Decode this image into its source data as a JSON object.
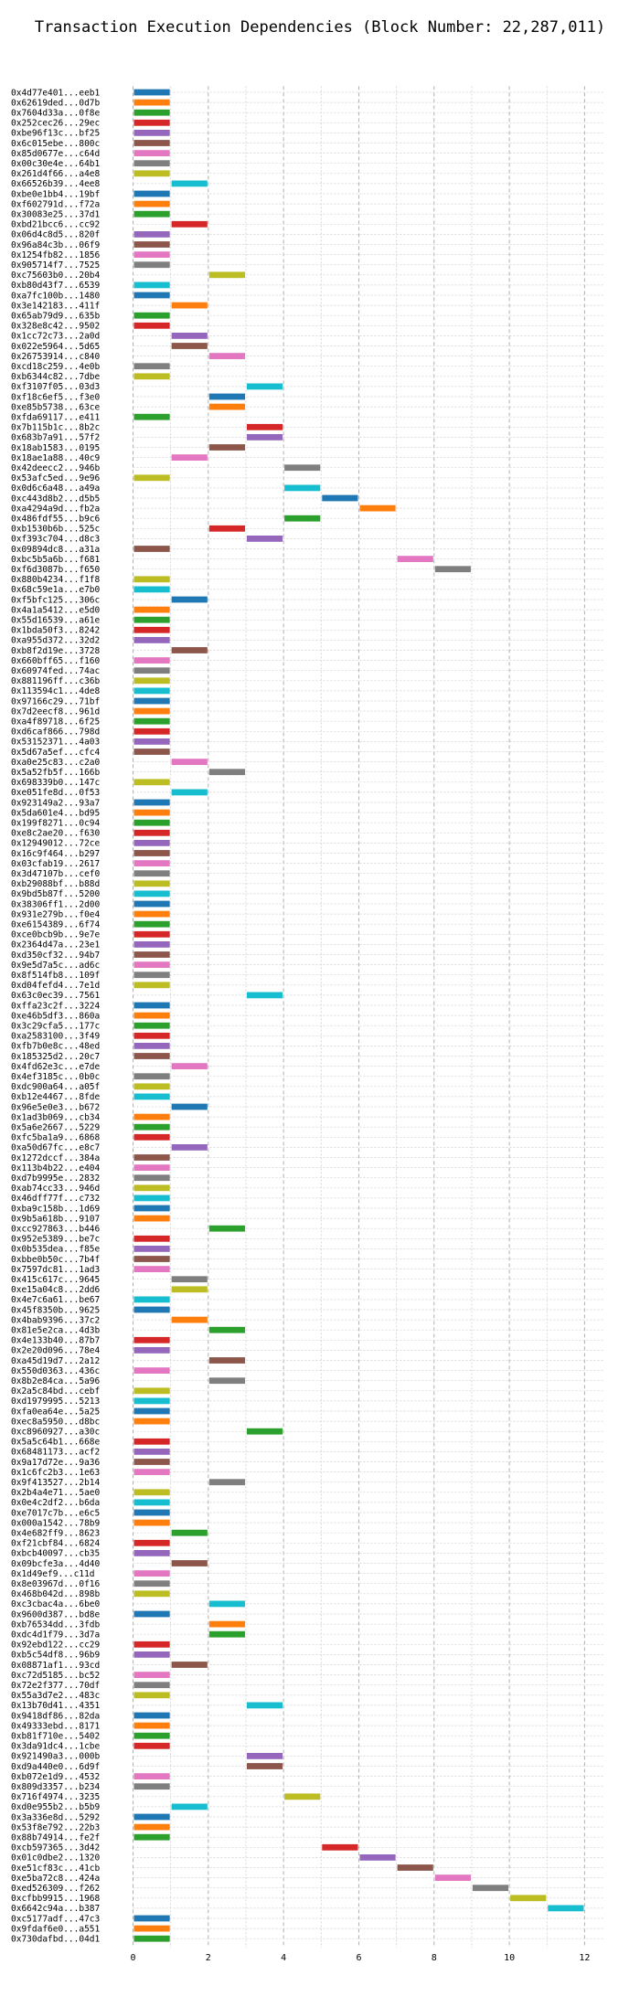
{
  "chart_data": {
    "type": "bar",
    "orientation": "horizontal",
    "title": "Transaction Execution Dependencies (Block Number: 22,287,011)",
    "xlabel": "",
    "ylabel": "",
    "xlim": [
      0,
      12.5
    ],
    "xticks": [
      0,
      2,
      4,
      6,
      8,
      10,
      12
    ],
    "grid": true,
    "legend": "none",
    "colors": [
      "#1f77b4",
      "#ff7f0e",
      "#2ca02c",
      "#d62728",
      "#9467bd",
      "#8c564b",
      "#e377c2",
      "#7f7f7f",
      "#bcbd22",
      "#17becf"
    ],
    "transactions": [
      {
        "label": "0x4d77e401...eeb1",
        "start": 0,
        "end": 1
      },
      {
        "label": "0x62619ded...0d7b",
        "start": 0,
        "end": 1
      },
      {
        "label": "0x7604d33a...0f8e",
        "start": 0,
        "end": 1
      },
      {
        "label": "0x252cec26...29ec",
        "start": 0,
        "end": 1
      },
      {
        "label": "0xbe96f13c...bf25",
        "start": 0,
        "end": 1
      },
      {
        "label": "0x6c015ebe...800c",
        "start": 0,
        "end": 1
      },
      {
        "label": "0x85d0677e...c64d",
        "start": 0,
        "end": 1
      },
      {
        "label": "0x00c30e4e...64b1",
        "start": 0,
        "end": 1
      },
      {
        "label": "0x261d4f66...a4e8",
        "start": 0,
        "end": 1
      },
      {
        "label": "0x66526b39...4ee8",
        "start": 1,
        "end": 2
      },
      {
        "label": "0xbe0e1bb4...19bf",
        "start": 0,
        "end": 1
      },
      {
        "label": "0xf602791d...f72a",
        "start": 0,
        "end": 1
      },
      {
        "label": "0x30083e25...37d1",
        "start": 0,
        "end": 1
      },
      {
        "label": "0xbd21bcc6...cc92",
        "start": 1,
        "end": 2
      },
      {
        "label": "0x06d4c8d5...820f",
        "start": 0,
        "end": 1
      },
      {
        "label": "0x96a84c3b...06f9",
        "start": 0,
        "end": 1
      },
      {
        "label": "0x1254fb82...1856",
        "start": 0,
        "end": 1
      },
      {
        "label": "0x905714f7...7525",
        "start": 0,
        "end": 1
      },
      {
        "label": "0xc75603b0...20b4",
        "start": 2,
        "end": 3
      },
      {
        "label": "0xb80d43f7...6539",
        "start": 0,
        "end": 1
      },
      {
        "label": "0xa7fc100b...1480",
        "start": 0,
        "end": 1
      },
      {
        "label": "0x3e142183...411f",
        "start": 1,
        "end": 2
      },
      {
        "label": "0x65ab79d9...635b",
        "start": 0,
        "end": 1
      },
      {
        "label": "0x328e8c42...9502",
        "start": 0,
        "end": 1
      },
      {
        "label": "0x1cc72c73...2a0d",
        "start": 1,
        "end": 2
      },
      {
        "label": "0x022e5964...5d65",
        "start": 1,
        "end": 2
      },
      {
        "label": "0x26753914...c840",
        "start": 2,
        "end": 3
      },
      {
        "label": "0xcd18c259...4e0b",
        "start": 0,
        "end": 1
      },
      {
        "label": "0xb6344c82...7dbe",
        "start": 0,
        "end": 1
      },
      {
        "label": "0xf3107f05...03d3",
        "start": 3,
        "end": 4
      },
      {
        "label": "0xf18c6ef5...f3e0",
        "start": 2,
        "end": 3
      },
      {
        "label": "0xe85b5738...63ce",
        "start": 2,
        "end": 3
      },
      {
        "label": "0xfda69117...e411",
        "start": 0,
        "end": 1
      },
      {
        "label": "0x7b115b1c...8b2c",
        "start": 3,
        "end": 4
      },
      {
        "label": "0x683b7a91...57f2",
        "start": 3,
        "end": 4
      },
      {
        "label": "0x18ab1583...0195",
        "start": 2,
        "end": 3
      },
      {
        "label": "0x18ae1a88...40c9",
        "start": 1,
        "end": 2
      },
      {
        "label": "0x42deecc2...946b",
        "start": 4,
        "end": 5
      },
      {
        "label": "0x53afc5ed...9e96",
        "start": 0,
        "end": 1
      },
      {
        "label": "0x0d6c6a48...a49a",
        "start": 4,
        "end": 5
      },
      {
        "label": "0xc443d8b2...d5b5",
        "start": 5,
        "end": 6
      },
      {
        "label": "0xa4294a9d...fb2a",
        "start": 6,
        "end": 7
      },
      {
        "label": "0x486fdf55...b9c6",
        "start": 4,
        "end": 5
      },
      {
        "label": "0xb1530b6b...525c",
        "start": 2,
        "end": 3
      },
      {
        "label": "0xf393c704...d8c3",
        "start": 3,
        "end": 4
      },
      {
        "label": "0x09894dc8...a31a",
        "start": 0,
        "end": 1
      },
      {
        "label": "0xbc5b5a6b...f681",
        "start": 7,
        "end": 8
      },
      {
        "label": "0xf6d3087b...f650",
        "start": 8,
        "end": 9
      },
      {
        "label": "0x880b4234...f1f8",
        "start": 0,
        "end": 1
      },
      {
        "label": "0x68c59e1a...e7b0",
        "start": 0,
        "end": 1
      },
      {
        "label": "0xf5bfc125...306c",
        "start": 1,
        "end": 2
      },
      {
        "label": "0x4a1a5412...e5d0",
        "start": 0,
        "end": 1
      },
      {
        "label": "0x55d16539...a61e",
        "start": 0,
        "end": 1
      },
      {
        "label": "0x1bda50f3...8242",
        "start": 0,
        "end": 1
      },
      {
        "label": "0xa955d372...32d2",
        "start": 0,
        "end": 1
      },
      {
        "label": "0xb8f2d19e...3728",
        "start": 1,
        "end": 2
      },
      {
        "label": "0x660bff65...f160",
        "start": 0,
        "end": 1
      },
      {
        "label": "0x60974fed...74ac",
        "start": 0,
        "end": 1
      },
      {
        "label": "0x881196ff...c36b",
        "start": 0,
        "end": 1
      },
      {
        "label": "0x113594c1...4de8",
        "start": 0,
        "end": 1
      },
      {
        "label": "0x97166c29...71bf",
        "start": 0,
        "end": 1
      },
      {
        "label": "0x7d2eecf8...961d",
        "start": 0,
        "end": 1
      },
      {
        "label": "0xa4f89718...6f25",
        "start": 0,
        "end": 1
      },
      {
        "label": "0xd6caf866...798d",
        "start": 0,
        "end": 1
      },
      {
        "label": "0x53152371...4a03",
        "start": 0,
        "end": 1
      },
      {
        "label": "0x5d67a5ef...cfc4",
        "start": 0,
        "end": 1
      },
      {
        "label": "0xa0e25c83...c2a0",
        "start": 1,
        "end": 2
      },
      {
        "label": "0x5a52fb5f...166b",
        "start": 2,
        "end": 3
      },
      {
        "label": "0x698339b0...147c",
        "start": 0,
        "end": 1
      },
      {
        "label": "0xe051fe8d...0f53",
        "start": 1,
        "end": 2
      },
      {
        "label": "0x923149a2...93a7",
        "start": 0,
        "end": 1
      },
      {
        "label": "0x5da601e4...bd95",
        "start": 0,
        "end": 1
      },
      {
        "label": "0x199f8271...0c94",
        "start": 0,
        "end": 1
      },
      {
        "label": "0xe8c2ae20...f630",
        "start": 0,
        "end": 1
      },
      {
        "label": "0x12949012...72ce",
        "start": 0,
        "end": 1
      },
      {
        "label": "0x16c9f464...b297",
        "start": 0,
        "end": 1
      },
      {
        "label": "0x03cfab19...2617",
        "start": 0,
        "end": 1
      },
      {
        "label": "0x3d47107b...cef0",
        "start": 0,
        "end": 1
      },
      {
        "label": "0xb29088bf...b88d",
        "start": 0,
        "end": 1
      },
      {
        "label": "0x9bd5b87f...5200",
        "start": 0,
        "end": 1
      },
      {
        "label": "0x38306ff1...2d00",
        "start": 0,
        "end": 1
      },
      {
        "label": "0x931e279b...f0e4",
        "start": 0,
        "end": 1
      },
      {
        "label": "0xe6154389...6f74",
        "start": 0,
        "end": 1
      },
      {
        "label": "0xce0bcb9b...9e7e",
        "start": 0,
        "end": 1
      },
      {
        "label": "0x2364d47a...23e1",
        "start": 0,
        "end": 1
      },
      {
        "label": "0xd350cf32...94b7",
        "start": 0,
        "end": 1
      },
      {
        "label": "0x9e5d7a5c...ad6c",
        "start": 0,
        "end": 1
      },
      {
        "label": "0x8f514fb8...109f",
        "start": 0,
        "end": 1
      },
      {
        "label": "0xd04fefd4...7e1d",
        "start": 0,
        "end": 1
      },
      {
        "label": "0x63c0ec39...7561",
        "start": 3,
        "end": 4
      },
      {
        "label": "0xffa23c2f...3224",
        "start": 0,
        "end": 1
      },
      {
        "label": "0xe46b5df3...860a",
        "start": 0,
        "end": 1
      },
      {
        "label": "0x3c29cfa5...177c",
        "start": 0,
        "end": 1
      },
      {
        "label": "0xa2583100...3f49",
        "start": 0,
        "end": 1
      },
      {
        "label": "0xfb7b0e8c...48ed",
        "start": 0,
        "end": 1
      },
      {
        "label": "0x185325d2...20c7",
        "start": 0,
        "end": 1
      },
      {
        "label": "0x4fd62e3c...e7de",
        "start": 1,
        "end": 2
      },
      {
        "label": "0x4ef3185c...0b0c",
        "start": 0,
        "end": 1
      },
      {
        "label": "0xdc900a64...a05f",
        "start": 0,
        "end": 1
      },
      {
        "label": "0xb12e4467...8fde",
        "start": 0,
        "end": 1
      },
      {
        "label": "0x96e5e0e3...b672",
        "start": 1,
        "end": 2
      },
      {
        "label": "0x1ad3b069...cb34",
        "start": 0,
        "end": 1
      },
      {
        "label": "0x5a6e2667...5229",
        "start": 0,
        "end": 1
      },
      {
        "label": "0xfc5ba1a9...6868",
        "start": 0,
        "end": 1
      },
      {
        "label": "0xa50d67fc...e8c7",
        "start": 1,
        "end": 2
      },
      {
        "label": "0x1272dccf...384a",
        "start": 0,
        "end": 1
      },
      {
        "label": "0x113b4b22...e404",
        "start": 0,
        "end": 1
      },
      {
        "label": "0xd7b9995e...2832",
        "start": 0,
        "end": 1
      },
      {
        "label": "0xab74cc33...946d",
        "start": 0,
        "end": 1
      },
      {
        "label": "0x46dff77f...c732",
        "start": 0,
        "end": 1
      },
      {
        "label": "0xba9c158b...1d69",
        "start": 0,
        "end": 1
      },
      {
        "label": "0x9b5a618b...9107",
        "start": 0,
        "end": 1
      },
      {
        "label": "0xcc927863...b446",
        "start": 2,
        "end": 3
      },
      {
        "label": "0x952e5389...be7c",
        "start": 0,
        "end": 1
      },
      {
        "label": "0x0b535dea...f85e",
        "start": 0,
        "end": 1
      },
      {
        "label": "0xbbe0b50c...7b4f",
        "start": 0,
        "end": 1
      },
      {
        "label": "0x7597dc81...1ad3",
        "start": 0,
        "end": 1
      },
      {
        "label": "0x415c617c...9645",
        "start": 1,
        "end": 2
      },
      {
        "label": "0xe15a04c8...2dd6",
        "start": 1,
        "end": 2
      },
      {
        "label": "0x4e7c6a61...be67",
        "start": 0,
        "end": 1
      },
      {
        "label": "0x45f8350b...9625",
        "start": 0,
        "end": 1
      },
      {
        "label": "0x4bab9396...37c2",
        "start": 1,
        "end": 2
      },
      {
        "label": "0x81e5e2ca...4d3b",
        "start": 2,
        "end": 3
      },
      {
        "label": "0x4e133b40...87b7",
        "start": 0,
        "end": 1
      },
      {
        "label": "0x2e20d096...78e4",
        "start": 0,
        "end": 1
      },
      {
        "label": "0xa45d19d7...2a12",
        "start": 2,
        "end": 3
      },
      {
        "label": "0x550d0363...436c",
        "start": 0,
        "end": 1
      },
      {
        "label": "0x8b2e84ca...5a96",
        "start": 2,
        "end": 3
      },
      {
        "label": "0x2a5c84bd...cebf",
        "start": 0,
        "end": 1
      },
      {
        "label": "0xd1979995...5213",
        "start": 0,
        "end": 1
      },
      {
        "label": "0xfa0ea64e...5a25",
        "start": 0,
        "end": 1
      },
      {
        "label": "0xec8a5950...d8bc",
        "start": 0,
        "end": 1
      },
      {
        "label": "0xc8960927...a30c",
        "start": 3,
        "end": 4
      },
      {
        "label": "0x5a5c64b1...668e",
        "start": 0,
        "end": 1
      },
      {
        "label": "0x68481173...acf2",
        "start": 0,
        "end": 1
      },
      {
        "label": "0x9a17d72e...9a36",
        "start": 0,
        "end": 1
      },
      {
        "label": "0x1c6fc2b3...1e63",
        "start": 0,
        "end": 1
      },
      {
        "label": "0x9f413527...2b14",
        "start": 2,
        "end": 3
      },
      {
        "label": "0x2b4a4e71...5ae0",
        "start": 0,
        "end": 1
      },
      {
        "label": "0x0e4c2df2...b6da",
        "start": 0,
        "end": 1
      },
      {
        "label": "0xe7017c7b...e6c5",
        "start": 0,
        "end": 1
      },
      {
        "label": "0x000a1542...78b9",
        "start": 0,
        "end": 1
      },
      {
        "label": "0x4e682ff9...8623",
        "start": 1,
        "end": 2
      },
      {
        "label": "0xf21cbf84...6824",
        "start": 0,
        "end": 1
      },
      {
        "label": "0xbcb40097...cb35",
        "start": 0,
        "end": 1
      },
      {
        "label": "0x09bcfe3a...4d40",
        "start": 1,
        "end": 2
      },
      {
        "label": "0x1d49ef9...c11d",
        "start": 0,
        "end": 1
      },
      {
        "label": "0x8e03967d...0f16",
        "start": 0,
        "end": 1
      },
      {
        "label": "0x468b042d...898b",
        "start": 0,
        "end": 1
      },
      {
        "label": "0xc3cbac4a...6be0",
        "start": 2,
        "end": 3
      },
      {
        "label": "0x9600d387...bd8e",
        "start": 0,
        "end": 1
      },
      {
        "label": "0xb76534dd...3fdb",
        "start": 2,
        "end": 3
      },
      {
        "label": "0xdc4d1f79...3d7a",
        "start": 2,
        "end": 3
      },
      {
        "label": "0x92ebd122...cc29",
        "start": 0,
        "end": 1
      },
      {
        "label": "0xb5c54df8...96b9",
        "start": 0,
        "end": 1
      },
      {
        "label": "0x08871af1...93cd",
        "start": 1,
        "end": 2
      },
      {
        "label": "0xc72d5185...bc52",
        "start": 0,
        "end": 1
      },
      {
        "label": "0x72e2f377...70df",
        "start": 0,
        "end": 1
      },
      {
        "label": "0x55a3d7e2...483c",
        "start": 0,
        "end": 1
      },
      {
        "label": "0x13b70d41...4351",
        "start": 3,
        "end": 4
      },
      {
        "label": "0x9418df86...82da",
        "start": 0,
        "end": 1
      },
      {
        "label": "0x49333ebd...8171",
        "start": 0,
        "end": 1
      },
      {
        "label": "0xb81f710e...5402",
        "start": 0,
        "end": 1
      },
      {
        "label": "0x3da91dc4...1cbe",
        "start": 0,
        "end": 1
      },
      {
        "label": "0x921490a3...000b",
        "start": 3,
        "end": 4
      },
      {
        "label": "0xd9a440e0...6d9f",
        "start": 3,
        "end": 4
      },
      {
        "label": "0xb072e1d9...4532",
        "start": 0,
        "end": 1
      },
      {
        "label": "0x809d3357...b234",
        "start": 0,
        "end": 1
      },
      {
        "label": "0x716f4974...3235",
        "start": 4,
        "end": 5
      },
      {
        "label": "0xd0e955b2...b5b9",
        "start": 1,
        "end": 2
      },
      {
        "label": "0x3a336e8d...5292",
        "start": 0,
        "end": 1
      },
      {
        "label": "0x53f8e792...22b3",
        "start": 0,
        "end": 1
      },
      {
        "label": "0x88b74914...fe2f",
        "start": 0,
        "end": 1
      },
      {
        "label": "0xcb597365...3d42",
        "start": 5,
        "end": 6
      },
      {
        "label": "0x01c0dbe2...1320",
        "start": 6,
        "end": 7
      },
      {
        "label": "0xe51cf83c...41cb",
        "start": 7,
        "end": 8
      },
      {
        "label": "0xe5ba72c8...424a",
        "start": 8,
        "end": 9
      },
      {
        "label": "0xed526309...f262",
        "start": 9,
        "end": 10
      },
      {
        "label": "0xcfbb9915...1968",
        "start": 10,
        "end": 11
      },
      {
        "label": "0x6642c94a...b387",
        "start": 11,
        "end": 12
      },
      {
        "label": "0xc5177adf...47c3",
        "start": 0,
        "end": 1
      },
      {
        "label": "0x9fdaf6e0...a551",
        "start": 0,
        "end": 1
      },
      {
        "label": "0x730dafbd...04d1",
        "start": 0,
        "end": 1
      }
    ]
  }
}
